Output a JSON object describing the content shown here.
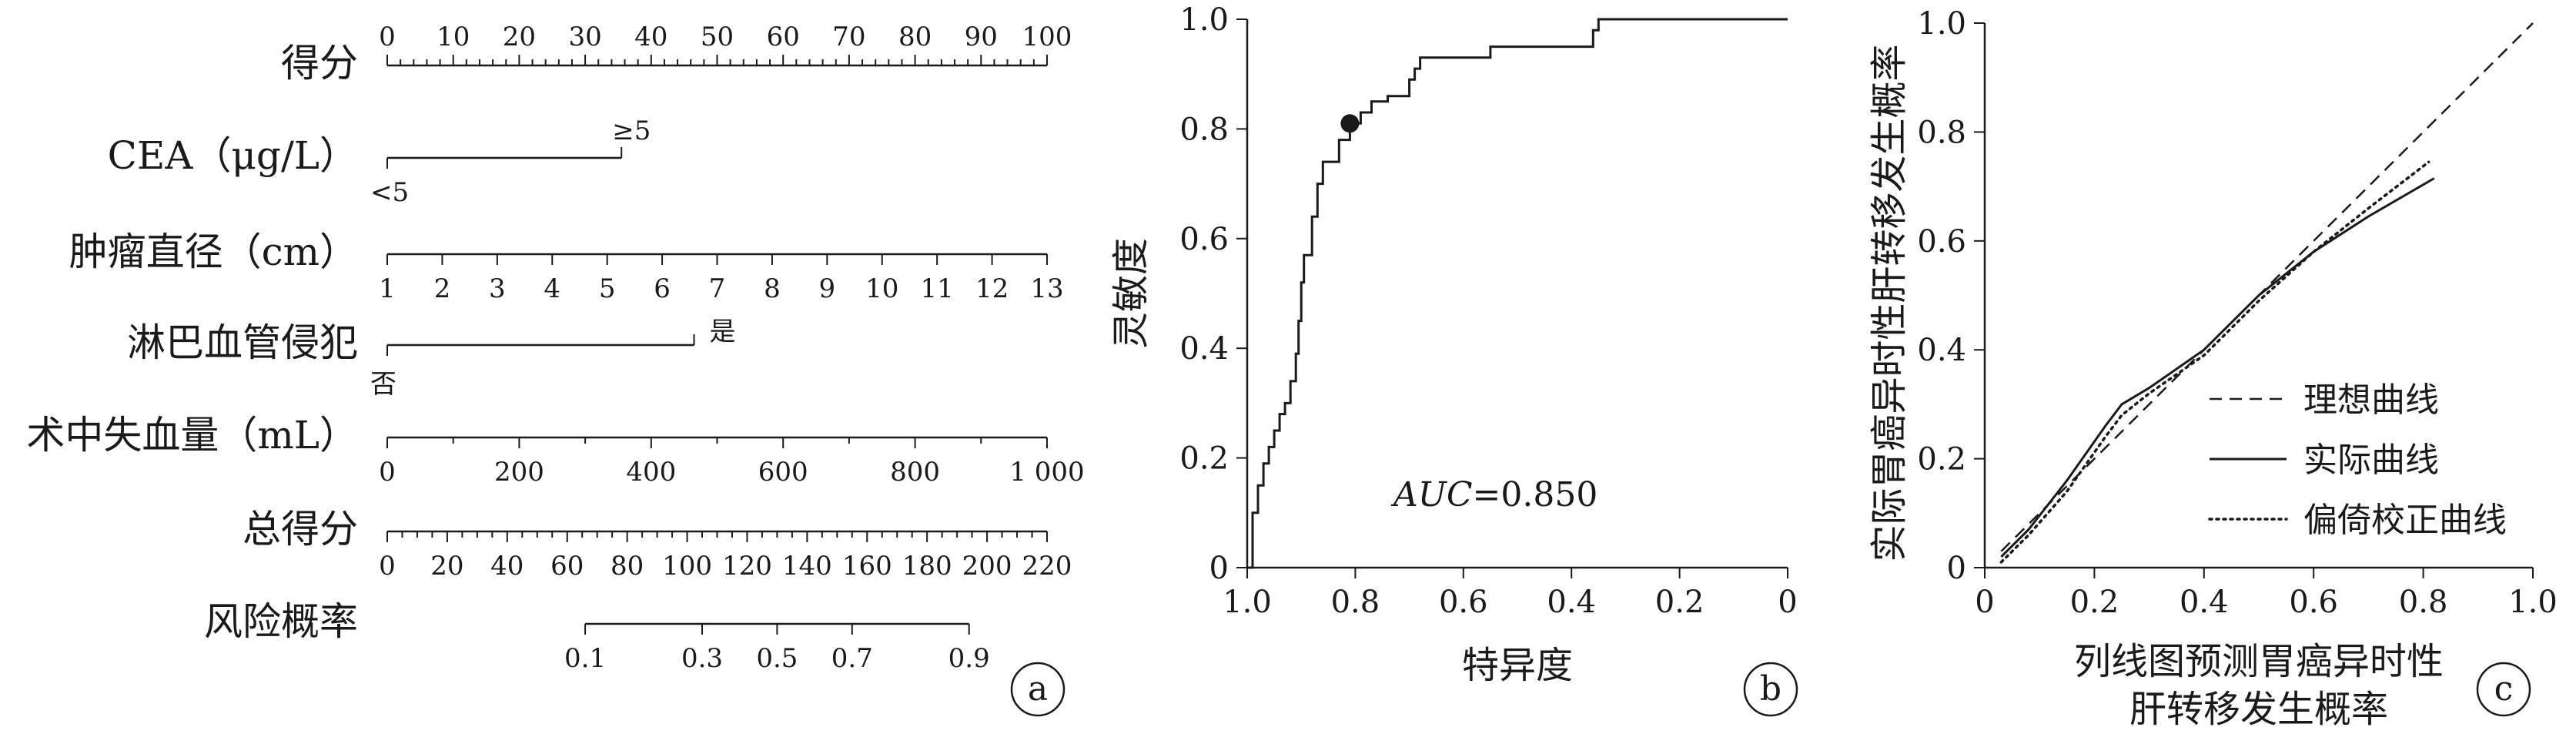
{
  "chart_data": [
    {
      "panel": "a",
      "type": "nomogram",
      "points_scale": {
        "label": "得分",
        "ticks": [
          "0",
          "10",
          "20",
          "30",
          "40",
          "50",
          "60",
          "70",
          "80",
          "90",
          "100"
        ],
        "range": [
          0,
          100
        ]
      },
      "variables": [
        {
          "label": "CEA（μg/L）",
          "levels": [
            {
              "text": "<5",
              "points": 0
            },
            {
              "text": "≥5",
              "points": 35.5
            }
          ]
        },
        {
          "label": "肿瘤直径（cm）",
          "ticks": [
            "1",
            "2",
            "3",
            "4",
            "5",
            "6",
            "7",
            "8",
            "9",
            "10",
            "11",
            "12",
            "13"
          ],
          "points_range": [
            0,
            100
          ]
        },
        {
          "label": "淋巴血管侵犯",
          "levels": [
            {
              "text": "否",
              "points": 0
            },
            {
              "text": "是",
              "points": 46.5
            }
          ]
        },
        {
          "label": "术中失血量（mL）",
          "ticks": [
            "0",
            "200",
            "400",
            "600",
            "800",
            "1 000"
          ],
          "points_range": [
            0,
            100
          ]
        }
      ],
      "total_points": {
        "label": "总得分",
        "ticks": [
          "0",
          "20",
          "40",
          "60",
          "80",
          "100",
          "120",
          "140",
          "160",
          "180",
          "200",
          "220"
        ],
        "range": [
          0,
          220
        ]
      },
      "risk": {
        "label": "风险概率",
        "ticks": [
          {
            "text": "0.1",
            "total": 66
          },
          {
            "text": "0.3",
            "total": 105
          },
          {
            "text": "0.5",
            "total": 130
          },
          {
            "text": "0.7",
            "total": 155
          },
          {
            "text": "0.9",
            "total": 194
          }
        ]
      }
    },
    {
      "panel": "b",
      "type": "line",
      "xlabel": "特异度",
      "ylabel": "灵敏度",
      "xlim": [
        1.0,
        0
      ],
      "ylim": [
        0,
        1.0
      ],
      "x_ticks": [
        "1.0",
        "0.8",
        "0.6",
        "0.4",
        "0.2",
        "0"
      ],
      "y_ticks": [
        "0",
        "0.2",
        "0.4",
        "0.6",
        "0.8",
        "1.0"
      ],
      "auc_label": "AUC",
      "auc_value": "=0.850",
      "cutoff_point": {
        "specificity": 0.81,
        "sensitivity": 0.81
      },
      "roc_points": [
        [
          1.0,
          0.0
        ],
        [
          0.99,
          0.0
        ],
        [
          0.99,
          0.1
        ],
        [
          0.98,
          0.1
        ],
        [
          0.98,
          0.15
        ],
        [
          0.97,
          0.15
        ],
        [
          0.97,
          0.19
        ],
        [
          0.96,
          0.19
        ],
        [
          0.96,
          0.22
        ],
        [
          0.95,
          0.22
        ],
        [
          0.95,
          0.25
        ],
        [
          0.94,
          0.25
        ],
        [
          0.94,
          0.28
        ],
        [
          0.93,
          0.28
        ],
        [
          0.93,
          0.3
        ],
        [
          0.92,
          0.3
        ],
        [
          0.92,
          0.34
        ],
        [
          0.91,
          0.34
        ],
        [
          0.91,
          0.39
        ],
        [
          0.905,
          0.39
        ],
        [
          0.905,
          0.45
        ],
        [
          0.9,
          0.45
        ],
        [
          0.9,
          0.52
        ],
        [
          0.895,
          0.52
        ],
        [
          0.895,
          0.57
        ],
        [
          0.88,
          0.57
        ],
        [
          0.88,
          0.64
        ],
        [
          0.87,
          0.64
        ],
        [
          0.87,
          0.7
        ],
        [
          0.86,
          0.7
        ],
        [
          0.86,
          0.74
        ],
        [
          0.83,
          0.74
        ],
        [
          0.83,
          0.78
        ],
        [
          0.81,
          0.78
        ],
        [
          0.81,
          0.81
        ],
        [
          0.79,
          0.81
        ],
        [
          0.79,
          0.83
        ],
        [
          0.77,
          0.83
        ],
        [
          0.77,
          0.85
        ],
        [
          0.74,
          0.85
        ],
        [
          0.74,
          0.86
        ],
        [
          0.7,
          0.86
        ],
        [
          0.7,
          0.89
        ],
        [
          0.69,
          0.89
        ],
        [
          0.69,
          0.91
        ],
        [
          0.68,
          0.91
        ],
        [
          0.68,
          0.93
        ],
        [
          0.55,
          0.93
        ],
        [
          0.55,
          0.95
        ],
        [
          0.36,
          0.95
        ],
        [
          0.36,
          0.98
        ],
        [
          0.35,
          0.98
        ],
        [
          0.35,
          1.0
        ],
        [
          0.0,
          1.0
        ]
      ]
    },
    {
      "panel": "c",
      "type": "line",
      "xlabel": [
        "列线图预测胃癌异时性",
        "肝转移发生概率"
      ],
      "ylabel": "实际胃癌异时性肝转移发生概率",
      "xlim": [
        0,
        1.0
      ],
      "ylim": [
        0,
        1.0
      ],
      "x_ticks": [
        "0",
        "0.2",
        "0.4",
        "0.6",
        "0.8",
        "1.0"
      ],
      "y_ticks": [
        "0",
        "0.2",
        "0.4",
        "0.6",
        "0.8",
        "1.0"
      ],
      "legend_position": "center-right",
      "series": [
        {
          "name": "理想曲线",
          "style": "dashed",
          "points": [
            [
              0.03,
              0.03
            ],
            [
              1.0,
              1.0
            ]
          ]
        },
        {
          "name": "实际曲线",
          "style": "solid",
          "points": [
            [
              0.03,
              0.02
            ],
            [
              0.08,
              0.07
            ],
            [
              0.15,
              0.16
            ],
            [
              0.22,
              0.26
            ],
            [
              0.25,
              0.3
            ],
            [
              0.3,
              0.33
            ],
            [
              0.4,
              0.4
            ],
            [
              0.5,
              0.5
            ],
            [
              0.6,
              0.58
            ],
            [
              0.7,
              0.645
            ],
            [
              0.82,
              0.715
            ]
          ]
        },
        {
          "name": "偏倚校正曲线",
          "style": "dotted",
          "points": [
            [
              0.03,
              0.01
            ],
            [
              0.08,
              0.06
            ],
            [
              0.15,
              0.14
            ],
            [
              0.22,
              0.24
            ],
            [
              0.25,
              0.28
            ],
            [
              0.3,
              0.32
            ],
            [
              0.4,
              0.39
            ],
            [
              0.5,
              0.49
            ],
            [
              0.6,
              0.58
            ],
            [
              0.7,
              0.66
            ],
            [
              0.81,
              0.745
            ]
          ]
        }
      ]
    }
  ]
}
